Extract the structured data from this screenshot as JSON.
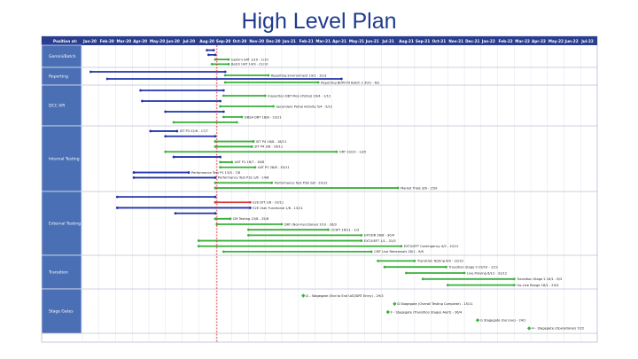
{
  "title": "High Level Plan",
  "header_corner": "Position at:",
  "months": [
    "Jan-20",
    "Feb-20",
    "Mar-20",
    "Apr-20",
    "May-20",
    "Jun-20",
    "Jul-20",
    "Aug-20",
    "Sep-20",
    "Oct-20",
    "Nov-20",
    "Dec-20",
    "Jan-21",
    "Feb-21",
    "Mar-21",
    "Apr-21",
    "May-21",
    "Jun-21",
    "Jul-21",
    "Aug-21",
    "Sep-21",
    "Oct-21",
    "Nov-21",
    "Dec-21",
    "Jan-22",
    "Feb-22",
    "Mar-22",
    "Apr-22",
    "May-22",
    "Jun-22",
    "Jul-22"
  ],
  "colors": {
    "header": "#2a3d8f",
    "row_label": "#4a6fb5",
    "done": "#2233aa",
    "future": "#3ab03a",
    "today": "#e02020",
    "slip": "#d63a3a",
    "grid": "#d8dde8",
    "title": "#1f3b8f"
  },
  "rows": [
    {
      "label": "Gemini/Batch",
      "tasks": [
        {
          "start": 7.5,
          "end": 7.9,
          "color": "done",
          "label": ""
        },
        {
          "start": 7.6,
          "end": 8.0,
          "color": "done",
          "label": ""
        },
        {
          "start": 8.0,
          "end": 8.8,
          "color": "future",
          "label": "Gemini UAT  1/10 - 1/10"
        },
        {
          "start": 7.8,
          "end": 8.8,
          "color": "future",
          "label": "Batch UAT  14/9 - 21/10"
        }
      ]
    },
    {
      "label": "Reporting",
      "tasks": [
        {
          "start": 0.5,
          "end": 8.6,
          "color": "done",
          "label": ""
        },
        {
          "start": 8.6,
          "end": 11.2,
          "color": "future",
          "label": "Reporting Environment  19/1 - 31/3"
        },
        {
          "start": 1.5,
          "end": 15.6,
          "color": "done",
          "label": ""
        },
        {
          "start": 8.6,
          "end": 14.2,
          "color": "future",
          "label": "Reporting BI/MI Fit Batch 2  30/1 - 6/2"
        }
      ]
    },
    {
      "label": "DCC API",
      "tasks": [
        {
          "start": 3.5,
          "end": 8.5,
          "color": "done",
          "label": ""
        },
        {
          "start": 8.5,
          "end": 11.0,
          "color": "future",
          "label": "Inspection DBT Mon (Portal)  29/4 - 1/12"
        },
        {
          "start": 3.6,
          "end": 8.3,
          "color": "done",
          "label": ""
        },
        {
          "start": 8.3,
          "end": 11.5,
          "color": "future",
          "label": "Secondary Portal Activity  5/4 - 5/12"
        },
        {
          "start": 5.0,
          "end": 8.5,
          "color": "done",
          "label": ""
        },
        {
          "start": 8.5,
          "end": 9.6,
          "color": "future",
          "label": "DBSA DBT  18/8 - 13/11"
        },
        {
          "start": 5.5,
          "end": 9.3,
          "color": "future",
          "label": ""
        }
      ]
    },
    {
      "label": "Internal Testing",
      "tasks": [
        {
          "start": 4.1,
          "end": 5.7,
          "color": "done",
          "label": "SIT P3  22/6 - 17/7"
        },
        {
          "start": 5.0,
          "end": 8.0,
          "color": "done",
          "label": ""
        },
        {
          "start": 8.0,
          "end": 10.3,
          "color": "future",
          "label": "SIT P4  18/8 - 18/11"
        },
        {
          "start": 8.0,
          "end": 10.2,
          "color": "future",
          "label": "SIT P4  3/8 - 16/11"
        },
        {
          "start": 5.0,
          "end": 15.3,
          "color": "future",
          "label": "ORT  10/10 - 13/5"
        },
        {
          "start": 5.5,
          "end": 8.3,
          "color": "done",
          "label": ""
        },
        {
          "start": 8.3,
          "end": 9.0,
          "color": "future",
          "label": "UAT P1  16/7 - 16/8"
        },
        {
          "start": 8.3,
          "end": 10.4,
          "color": "future",
          "label": "UAT P2  28/8 - 30/11"
        },
        {
          "start": 3.1,
          "end": 6.4,
          "color": "done",
          "label": "Performance Test P1  13/5 - 7/8"
        },
        {
          "start": 3.1,
          "end": 8.0,
          "color": "done",
          "label": "Performance Test P1b  1/6 - 14/8"
        },
        {
          "start": 8.0,
          "end": 11.4,
          "color": "future",
          "label": "Performance Test P2B  2/8 - 29/12"
        },
        {
          "start": 8.0,
          "end": 19.0,
          "color": "future",
          "label": "Market Trials  3/6 - 15/9"
        }
      ]
    },
    {
      "label": "External Testing",
      "tasks": [
        {
          "start": 2.1,
          "end": 8.0,
          "color": "done",
          "label": ""
        },
        {
          "start": 8.0,
          "end": 10.1,
          "color": "slip",
          "label": "E2E DIT  1/6 - 10/11"
        },
        {
          "start": 2.1,
          "end": 10.1,
          "color": "done",
          "label": "E2E User Functional  1/6 - 13/11"
        },
        {
          "start": 5.6,
          "end": 8.0,
          "color": "done",
          "label": ""
        },
        {
          "start": 8.0,
          "end": 8.9,
          "color": "future",
          "label": "CM Testing  15/8 - 25/8"
        },
        {
          "start": 8.1,
          "end": 12.0,
          "color": "future",
          "label": "DRT (Non-Functional)  7/10 - 26/3"
        },
        {
          "start": 10.0,
          "end": 14.8,
          "color": "future",
          "label": "UCWT  16/11 - 1/3"
        },
        {
          "start": 10.0,
          "end": 16.8,
          "color": "future",
          "label": "EXT/DR  26/8 - 30/4"
        },
        {
          "start": 7.0,
          "end": 16.8,
          "color": "future",
          "label": "EXT/UEFT  1/1 - 31/5"
        },
        {
          "start": 7.0,
          "end": 19.2,
          "color": "future",
          "label": "EXT/UEFT Contingency  4/5 - 10/11"
        },
        {
          "start": 8.5,
          "end": 17.4,
          "color": "future",
          "label": "CMT Live Rehearsals  28/1 - 9/8"
        }
      ]
    },
    {
      "label": "Transition",
      "tasks": [
        {
          "start": 17.8,
          "end": 20.0,
          "color": "future",
          "label": "Transition Testing  6/9 - 22/10"
        },
        {
          "start": 18.2,
          "end": 21.9,
          "color": "future",
          "label": "Transition Stage 0  29/10 - 1/12"
        },
        {
          "start": 19.5,
          "end": 23.0,
          "color": "future",
          "label": "Live Proving  6/12 - 31/12"
        },
        {
          "start": 20.5,
          "end": 26.0,
          "color": "future",
          "label": "Transition Stage 2  16/1 - 6/3"
        },
        {
          "start": 22.0,
          "end": 26.0,
          "color": "future",
          "label": "Go-Live Range  18/2 - 20/3"
        }
      ]
    },
    {
      "label": "Stage Gates",
      "tasks": [
        {
          "start": 13.3,
          "end": 13.3,
          "color": "future",
          "label": "D - Stagegate (End to End UAT/DRT Entry) - 29/3"
        },
        {
          "start": 18.8,
          "end": 18.8,
          "color": "future",
          "label": "D Stagegate (Overall Testing Complete) - 15/11"
        },
        {
          "start": 18.4,
          "end": 18.4,
          "color": "future",
          "label": "F - Stagegate (Transition Stages Alert) - 26/4"
        },
        {
          "start": 23.8,
          "end": 23.8,
          "color": "future",
          "label": "G Stagegate (Go Live) - 24/1"
        },
        {
          "start": 26.9,
          "end": 26.9,
          "color": "future",
          "label": "H - Stagegate (Operational) 7/22"
        }
      ]
    }
  ],
  "today": 8.1
}
